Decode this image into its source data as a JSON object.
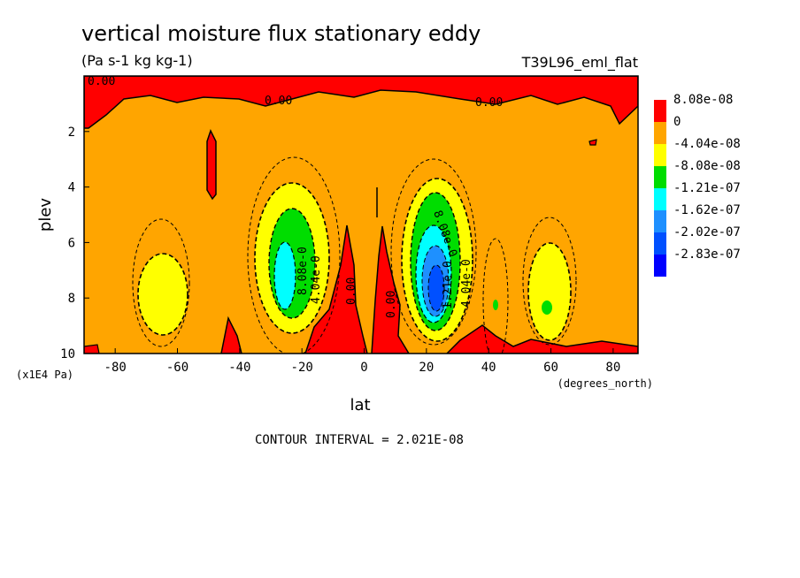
{
  "chart_data": {
    "type": "heatmap",
    "title": "vertical moisture flux stationary eddy",
    "subtitle": "(Pa s-1 kg kg-1)",
    "run_label": "T39L96_eml_flat",
    "xlabel": "lat",
    "x_units": "(degrees_north)",
    "ylabel": "plev",
    "y_units": "(x1E4 Pa)",
    "xlim": [
      -90,
      88
    ],
    "ylim": [
      10,
      0
    ],
    "x_ticks": [
      -80,
      -60,
      -40,
      -20,
      0,
      20,
      40,
      60,
      80
    ],
    "y_ticks": [
      2,
      4,
      6,
      8,
      10
    ],
    "footer": "CONTOUR INTERVAL = 2.021E-08",
    "legend": {
      "placement": "right",
      "levels": [
        "8.08e-08",
        "0",
        "-4.04e-08",
        "-8.08e-08",
        "-1.21e-07",
        "-1.62e-07",
        "-2.02e-07",
        "-2.83e-07"
      ],
      "colors": [
        "#ff0000",
        "#ffa500",
        "#ffff00",
        "#00dd00",
        "#00ffff",
        "#1e90ff",
        "#0050ff",
        "#0000ff"
      ]
    },
    "contour_labels": [
      "0.00",
      "0.00",
      "0.00",
      "0.00",
      "0.00",
      "8.08e-0",
      "4.04e-0",
      "8.08e-0",
      "1.21e-0",
      "4.04e-0"
    ],
    "features": [
      {
        "lat": -57,
        "plev": 8.0,
        "min_value": -4.04e-08
      },
      {
        "lat": -27,
        "plev": 7.0,
        "min_value": -1.21e-07
      },
      {
        "lat": 25,
        "plev": 7.5,
        "min_value": -2.02e-07
      },
      {
        "lat": 60,
        "plev": 8.0,
        "min_value": -8.08e-08
      },
      {
        "lat": -48,
        "plev": 3.0,
        "max_value": 8.08e-08
      },
      {
        "lat": 8,
        "plev": 7.0,
        "max_value": 8.08e-08
      },
      {
        "lat": -3,
        "plev": 8.5,
        "max_value": 8.08e-08
      }
    ]
  }
}
